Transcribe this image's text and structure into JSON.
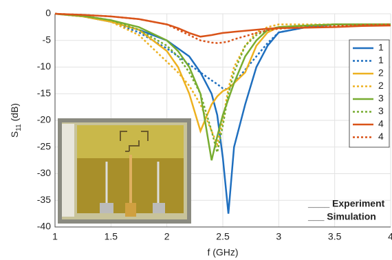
{
  "chart_data": {
    "type": "line",
    "x_label": "f (GHz)",
    "y_label": {
      "main": "S",
      "sub": "11",
      "unit": "(dB)"
    },
    "x": [
      1,
      1.25,
      1.5,
      1.75,
      2,
      2.1,
      2.2,
      2.3,
      2.4,
      2.45,
      2.5,
      2.55,
      2.6,
      2.7,
      2.8,
      2.9,
      3,
      3.25,
      3.5,
      3.75,
      4
    ],
    "series": [
      {
        "name": "1",
        "color": "#1f6fbf",
        "dashed": false,
        "values": [
          0,
          -0.5,
          -1.5,
          -3,
          -5,
          -6.5,
          -8,
          -11,
          -15,
          -19,
          -27,
          -37.5,
          -25,
          -17,
          -10,
          -6,
          -3.5,
          -2.5,
          -2,
          -2,
          -2
        ]
      },
      {
        "name": "1",
        "color": "#1f6fbf",
        "dashed": true,
        "values": [
          0,
          -0.5,
          -1.5,
          -3.5,
          -6.5,
          -8,
          -9.5,
          -11,
          -12.5,
          -13.2,
          -14,
          -14.2,
          -13,
          -10.5,
          -8,
          -5.5,
          -3.5,
          -2.5,
          -2,
          -2,
          -2
        ]
      },
      {
        "name": "2",
        "color": "#edb120",
        "dashed": false,
        "values": [
          0,
          -0.5,
          -1.5,
          -3,
          -7,
          -10,
          -15,
          -22,
          -17,
          -15.5,
          -14.5,
          -14,
          -13,
          -11,
          -6,
          -3.5,
          -2.5,
          -2.2,
          -2,
          -2,
          -2
        ]
      },
      {
        "name": "2",
        "color": "#edb120",
        "dashed": true,
        "values": [
          0,
          -0.5,
          -1.5,
          -4,
          -9,
          -11,
          -13.5,
          -17,
          -22,
          -24.5,
          -20,
          -14,
          -10,
          -6,
          -3.5,
          -2.5,
          -2,
          -2,
          -2,
          -2,
          -2
        ]
      },
      {
        "name": "3",
        "color": "#77ac30",
        "dashed": false,
        "values": [
          0,
          -0.4,
          -1.2,
          -2.5,
          -5,
          -7,
          -10,
          -15,
          -27.5,
          -23,
          -19,
          -16,
          -13,
          -8,
          -5,
          -3,
          -2.5,
          -2.2,
          -2,
          -2,
          -2
        ]
      },
      {
        "name": "3",
        "color": "#77ac30",
        "dashed": true,
        "values": [
          0,
          -0.4,
          -1.2,
          -3,
          -6,
          -8,
          -11,
          -15,
          -22,
          -26,
          -21,
          -15,
          -11,
          -6,
          -4,
          -3,
          -2.5,
          -2.2,
          -2,
          -2,
          -2
        ]
      },
      {
        "name": "4",
        "color": "#d95319",
        "dashed": false,
        "values": [
          0,
          -0.2,
          -0.5,
          -1,
          -2,
          -2.7,
          -3.6,
          -4.3,
          -4,
          -3.8,
          -3.6,
          -3.5,
          -3.4,
          -3.2,
          -3,
          -2.8,
          -2.7,
          -2.6,
          -2.5,
          -2.3,
          -2.2
        ]
      },
      {
        "name": "4",
        "color": "#d95319",
        "dashed": true,
        "values": [
          0,
          -0.2,
          -0.5,
          -1,
          -2,
          -3,
          -4,
          -5,
          -5.4,
          -5.5,
          -5.4,
          -5.2,
          -4.8,
          -4.2,
          -3.6,
          -3.1,
          -2.8,
          -2.5,
          -2.3,
          -2.1,
          -2
        ]
      }
    ],
    "xlim": [
      1,
      4
    ],
    "xticks": [
      1,
      1.5,
      2,
      2.5,
      3,
      3.5,
      4
    ],
    "ylim": [
      -40,
      0
    ],
    "yticks": [
      -40,
      -35,
      -30,
      -25,
      -20,
      -15,
      -10,
      -5,
      0
    ],
    "grid": true,
    "legend": "right",
    "annotations": [
      "____ Experiment",
      "___ Simulation"
    ]
  }
}
